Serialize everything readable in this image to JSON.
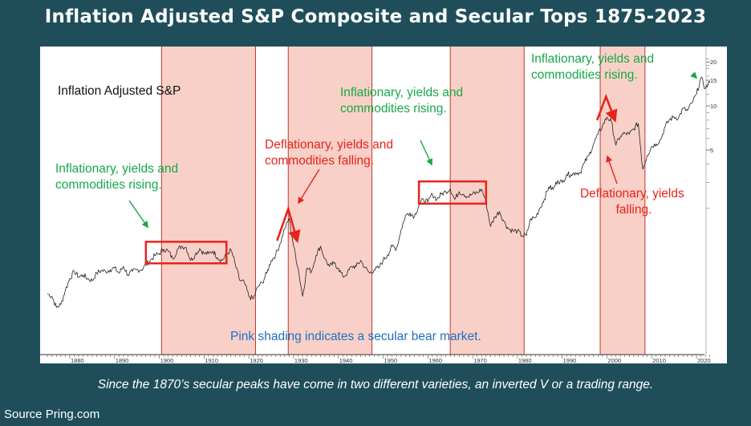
{
  "title": "Inflation Adjusted S&P Composite and Secular Tops 1875-2023",
  "caption": "Since the 1870’s secular peaks have come in two different varieties, an inverted V or a trading range.",
  "source": "Source Pring.com",
  "colors": {
    "background": "#1f4e5a",
    "shading_fill": "#f8d0c8",
    "shading_edge": "#c0392b",
    "green": "#17a84a",
    "red": "#e8231c",
    "blue": "#1f6fc1",
    "line": "#222222"
  },
  "chart_data": {
    "type": "line",
    "series_label": "Inflation Adjusted S&P",
    "xlim": [
      1874,
      2024
    ],
    "ylim_log": [
      1,
      22
    ],
    "y_scale": "log",
    "x_ticks": [
      1880,
      1890,
      1900,
      1910,
      1920,
      1930,
      1940,
      1950,
      1960,
      1970,
      1980,
      1990,
      2000,
      2010,
      2020
    ],
    "y_ticks": [
      5,
      10,
      15,
      20
    ],
    "shaded_bear_markets": [
      {
        "start": 1900.5,
        "end": 1921.5
      },
      {
        "start": 1928.8,
        "end": 1947.5
      },
      {
        "start": 1965.0,
        "end": 1981.5
      },
      {
        "start": 1998.5,
        "end": 2008.5
      }
    ],
    "series": [
      {
        "x": [
          1875,
          1876,
          1877,
          1878,
          1879,
          1880,
          1881,
          1882,
          1883,
          1884,
          1885,
          1886,
          1887,
          1888,
          1889,
          1890,
          1891,
          1892,
          1893,
          1894,
          1895,
          1896,
          1897,
          1898,
          1899,
          1900,
          1901,
          1902,
          1903,
          1904,
          1905,
          1906,
          1907,
          1908,
          1909,
          1910,
          1911,
          1912,
          1913,
          1914,
          1915,
          1916,
          1917,
          1918,
          1919,
          1920,
          1921,
          1922,
          1923,
          1924,
          1925,
          1926,
          1927,
          1928,
          1929,
          1930,
          1931,
          1932,
          1933,
          1934,
          1935,
          1936,
          1937,
          1938,
          1939,
          1940,
          1941,
          1942,
          1943,
          1944,
          1945,
          1946,
          1947,
          1948,
          1949,
          1950,
          1951,
          1952,
          1953,
          1954,
          1955,
          1956,
          1957,
          1958,
          1959,
          1960,
          1961,
          1962,
          1963,
          1964,
          1965,
          1966,
          1967,
          1968,
          1969,
          1970,
          1971,
          1972,
          1973,
          1974,
          1975,
          1976,
          1977,
          1978,
          1979,
          1980,
          1981,
          1982,
          1983,
          1984,
          1985,
          1986,
          1987,
          1988,
          1989,
          1990,
          1991,
          1992,
          1993,
          1994,
          1995,
          1996,
          1997,
          1998,
          1999,
          2000,
          2001,
          2002,
          2003,
          2004,
          2005,
          2006,
          2007,
          2008,
          2009,
          2010,
          2011,
          2012,
          2013,
          2014,
          2015,
          2016,
          2017,
          2018,
          2019,
          2020,
          2021,
          2022,
          2023
        ],
        "values": [
          0.52,
          0.5,
          0.42,
          0.44,
          0.55,
          0.66,
          0.74,
          0.68,
          0.7,
          0.66,
          0.64,
          0.72,
          0.75,
          0.74,
          0.76,
          0.78,
          0.72,
          0.8,
          0.7,
          0.74,
          0.76,
          0.76,
          0.82,
          0.88,
          0.95,
          0.98,
          1.05,
          1.02,
          0.9,
          1.04,
          1.1,
          1.08,
          0.88,
          0.96,
          1.06,
          0.98,
          0.98,
          1.02,
          0.92,
          0.88,
          0.96,
          1.04,
          0.82,
          0.64,
          0.62,
          0.5,
          0.48,
          0.58,
          0.62,
          0.72,
          0.88,
          0.96,
          1.15,
          1.45,
          1.7,
          1.1,
          0.78,
          0.5,
          0.78,
          0.74,
          0.95,
          1.1,
          0.9,
          0.8,
          0.84,
          0.78,
          0.68,
          0.72,
          0.8,
          0.8,
          0.88,
          0.78,
          0.72,
          0.76,
          0.78,
          0.88,
          0.96,
          1.1,
          1.06,
          1.42,
          1.78,
          1.86,
          1.76,
          2.1,
          2.3,
          2.2,
          2.5,
          2.3,
          2.5,
          2.6,
          2.72,
          2.3,
          2.6,
          2.5,
          2.4,
          2.5,
          2.55,
          2.7,
          2.2,
          1.5,
          1.75,
          1.9,
          1.62,
          1.45,
          1.4,
          1.4,
          1.3,
          1.3,
          1.7,
          1.72,
          2.0,
          2.3,
          2.8,
          2.7,
          3.1,
          3.0,
          3.4,
          3.4,
          3.5,
          3.5,
          4.1,
          4.6,
          5.5,
          6.4,
          7.3,
          8.4,
          7.8,
          5.4,
          6.2,
          6.5,
          6.4,
          7.0,
          7.6,
          3.7,
          4.6,
          5.3,
          5.5,
          5.9,
          7.2,
          8.1,
          8.4,
          8.3,
          9.6,
          9.3,
          10.5,
          12.0,
          15.6,
          13.2,
          14.5
        ]
      }
    ],
    "annotations": [
      {
        "text": "Inflationary, yields and commodities rising.",
        "color": "green"
      },
      {
        "text": "Deflationary, yields and commodities falling.",
        "color": "red"
      },
      {
        "text": "Inflationary, yields and commodities rising.",
        "color": "green"
      },
      {
        "text": "Inflationary, yields and commodities rising.",
        "color": "green"
      },
      {
        "text": "Deflationary, yields falling.",
        "color": "red"
      },
      {
        "text": "Pink shading indicates a secular bear market.",
        "color": "blue"
      }
    ],
    "trading_range_boxes": [
      {
        "x0": 1897,
        "x1": 1915,
        "y0": 0.84,
        "y1": 1.18
      },
      {
        "x0": 1958,
        "x1": 1973,
        "y0": 2.15,
        "y1": 3.05
      }
    ],
    "inverted_v_tops": [
      {
        "x0": 1926.3,
        "xp": 1928.8,
        "x1": 1930.8,
        "y0": 1.2,
        "yp": 1.98,
        "y1": 1.2
      },
      {
        "x0": 1997.8,
        "xp": 1999.8,
        "x1": 2001.8,
        "y0": 8.0,
        "yp": 11.6,
        "y1": 8.0
      }
    ]
  }
}
